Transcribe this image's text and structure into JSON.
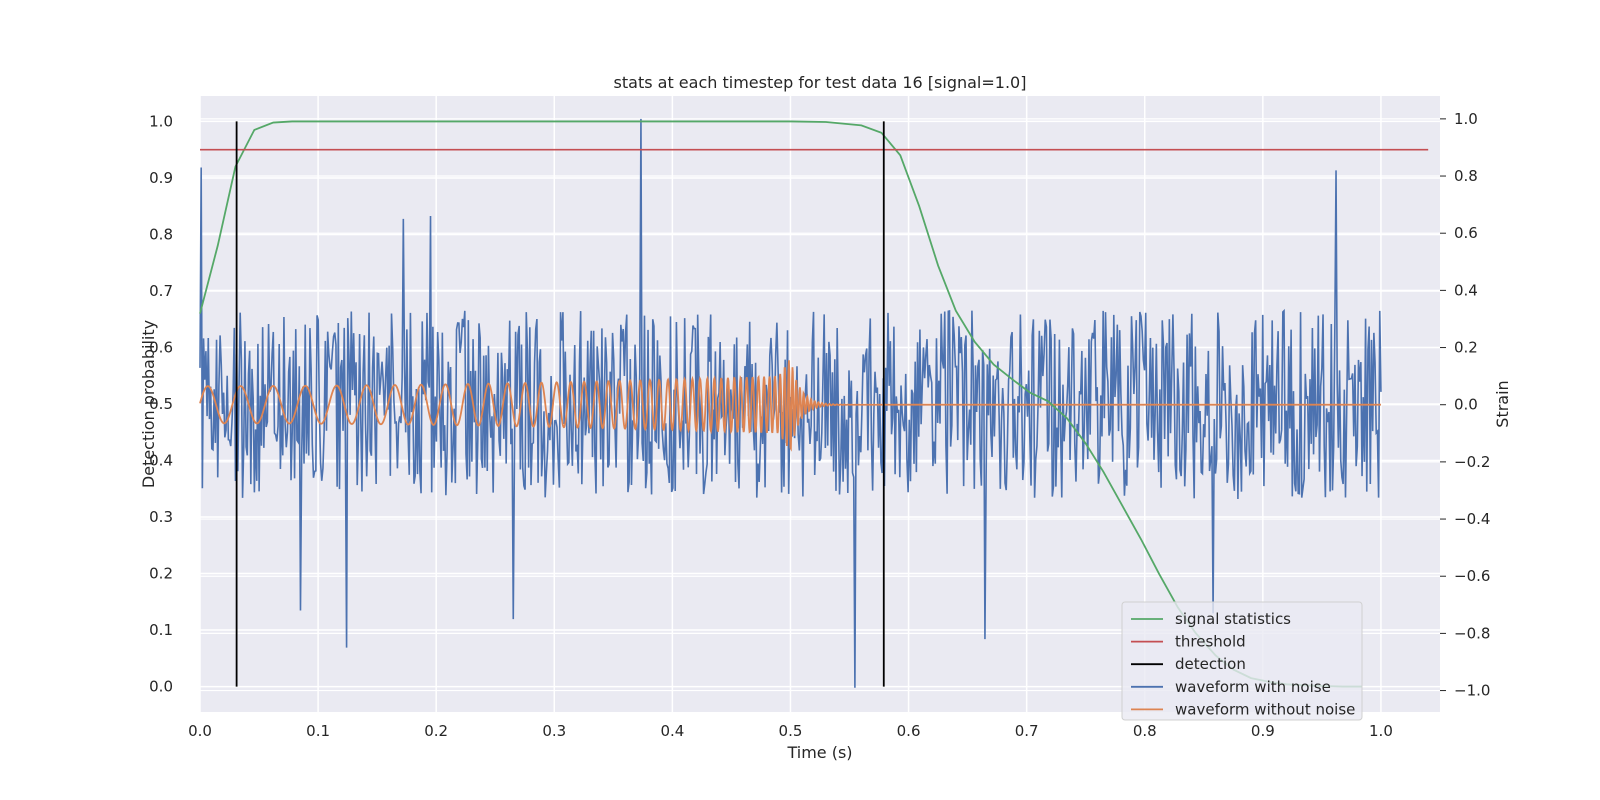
{
  "chart_data": {
    "type": "line",
    "title": "stats at each timestep for test data 16 [signal=1.0]",
    "xlabel": "Time (s)",
    "ylabel": "Detection probability",
    "y2label": "Strain",
    "xlim": [
      0.0,
      1.05
    ],
    "ylim": [
      -0.045,
      1.045
    ],
    "y2lim": [
      -1.075,
      1.08
    ],
    "xticks": [
      "0.0",
      "0.1",
      "0.2",
      "0.3",
      "0.4",
      "0.5",
      "0.6",
      "0.7",
      "0.8",
      "0.9",
      "1.0"
    ],
    "yticks": [
      "0.0",
      "0.1",
      "0.2",
      "0.3",
      "0.4",
      "0.5",
      "0.6",
      "0.7",
      "0.8",
      "0.9",
      "1.0"
    ],
    "y2ticks": [
      "−1.0",
      "−0.8",
      "−0.6",
      "−0.4",
      "−0.2",
      "0.0",
      "0.2",
      "0.4",
      "0.6",
      "0.8",
      "1.0"
    ],
    "grid": true,
    "legend_position": "lower right",
    "series": [
      {
        "name": "signal statistics",
        "color": "#55a868",
        "axis": "left",
        "x": [
          0.0,
          0.015,
          0.03,
          0.046,
          0.062,
          0.078,
          0.5,
          0.53,
          0.56,
          0.577,
          0.593,
          0.609,
          0.625,
          0.64,
          0.656,
          0.672,
          0.687,
          0.703,
          0.718,
          0.734,
          0.75,
          0.765,
          0.781,
          0.797,
          0.812,
          0.828,
          0.843,
          0.86,
          0.875,
          0.89,
          0.906,
          0.92,
          0.937,
          0.952,
          0.968,
          0.984
        ],
        "y": [
          0.66,
          0.78,
          0.92,
          0.985,
          0.998,
          1.0,
          1.0,
          0.999,
          0.993,
          0.98,
          0.94,
          0.85,
          0.745,
          0.665,
          0.61,
          0.57,
          0.545,
          0.52,
          0.505,
          0.475,
          0.43,
          0.38,
          0.32,
          0.26,
          0.2,
          0.14,
          0.095,
          0.055,
          0.03,
          0.015,
          0.008,
          0.004,
          0.002,
          0.001,
          0.0,
          0.0
        ]
      },
      {
        "name": "threshold",
        "color": "#c44e52",
        "axis": "left",
        "x": [
          0.0,
          1.04
        ],
        "y": [
          0.95,
          0.95
        ]
      },
      {
        "name": "detection",
        "color": "#000000",
        "axis": "left",
        "x": [
          0.031,
          0.579
        ],
        "y": [
          0.0,
          1.0
        ]
      },
      {
        "name": "waveform with noise",
        "color": "#4c72b0",
        "axis": "right",
        "x": [
          0.0,
          1.0
        ],
        "y": [
          -0.33,
          0.33
        ],
        "peaks": [
          {
            "x": 0.001,
            "y": 0.83
          },
          {
            "x": 0.085,
            "y": -0.72
          },
          {
            "x": 0.124,
            "y": -0.85
          },
          {
            "x": 0.172,
            "y": 0.65
          },
          {
            "x": 0.195,
            "y": 0.66
          },
          {
            "x": 0.265,
            "y": -0.75
          },
          {
            "x": 0.373,
            "y": 1.0
          },
          {
            "x": 0.555,
            "y": -0.99
          },
          {
            "x": 0.665,
            "y": -0.82
          },
          {
            "x": 0.858,
            "y": -0.73
          },
          {
            "x": 0.962,
            "y": 0.82
          }
        ]
      },
      {
        "name": "waveform without noise",
        "color": "#dd8452",
        "axis": "right",
        "x": [
          0.0,
          0.49,
          0.5,
          1.0
        ],
        "y": [
          -0.065,
          0.065,
          0.165,
          0.0
        ]
      }
    ]
  }
}
